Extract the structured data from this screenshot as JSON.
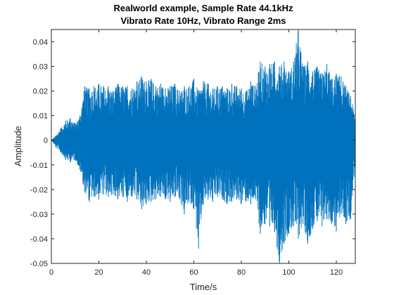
{
  "chart_data": {
    "type": "line",
    "title_line1": "Realworld example, Sample Rate 44.1kHz",
    "title_line2": "Vibrato Rate 10Hz, Vibrato Range 2ms",
    "xlabel": "Time/s",
    "ylabel": "Amplitude",
    "xlim": [
      0,
      128
    ],
    "ylim": [
      -0.05,
      0.045
    ],
    "x_ticks": [
      0,
      20,
      40,
      60,
      80,
      100,
      120
    ],
    "y_ticks": [
      -0.05,
      -0.04,
      -0.03,
      -0.02,
      -0.01,
      0,
      0.01,
      0.02,
      0.03,
      0.04
    ],
    "x_tick_labels": [
      "0",
      "20",
      "40",
      "60",
      "80",
      "100",
      "120"
    ],
    "y_tick_labels": [
      "-0.05",
      "-0.04",
      "-0.03",
      "-0.02",
      "-0.01",
      "0",
      "0.01",
      "0.02",
      "0.03",
      "0.04"
    ],
    "grid": false,
    "line_color": "#0072BD",
    "series": [
      {
        "x": [
          0,
          2,
          4,
          6,
          8,
          10,
          12,
          14,
          16,
          18,
          20,
          22,
          24,
          26,
          28,
          30,
          32,
          34,
          36,
          38,
          40,
          42,
          44,
          46,
          48,
          50,
          52,
          54,
          56,
          58,
          60,
          62,
          64,
          66,
          68,
          70,
          72,
          74,
          76,
          78,
          80,
          82,
          84,
          86,
          88,
          90,
          92,
          94,
          96,
          98,
          100,
          102,
          104,
          106,
          108,
          110,
          112,
          114,
          116,
          118,
          120,
          122,
          124,
          126,
          128
        ],
        "y_upper": [
          0,
          0.002,
          0.005,
          0.008,
          0.009,
          0.007,
          0.01,
          0.022,
          0.021,
          0.022,
          0.023,
          0.022,
          0.022,
          0.02,
          0.023,
          0.022,
          0.022,
          0.021,
          0.024,
          0.026,
          0.024,
          0.025,
          0.022,
          0.023,
          0.021,
          0.022,
          0.023,
          0.02,
          0.022,
          0.022,
          0.025,
          0.02,
          0.024,
          0.023,
          0.021,
          0.022,
          0.022,
          0.021,
          0.023,
          0.022,
          0.021,
          0.02,
          0.024,
          0.022,
          0.032,
          0.03,
          0.031,
          0.032,
          0.03,
          0.032,
          0.028,
          0.032,
          0.046,
          0.03,
          0.032,
          0.028,
          0.03,
          0.027,
          0.031,
          0.025,
          0.027,
          0.026,
          0.022,
          0.018,
          0.01
        ],
        "y_lower": [
          0,
          -0.003,
          -0.005,
          -0.008,
          -0.009,
          -0.008,
          -0.012,
          -0.021,
          -0.025,
          -0.023,
          -0.024,
          -0.022,
          -0.023,
          -0.022,
          -0.024,
          -0.023,
          -0.025,
          -0.023,
          -0.024,
          -0.028,
          -0.026,
          -0.025,
          -0.024,
          -0.023,
          -0.024,
          -0.025,
          -0.023,
          -0.024,
          -0.03,
          -0.025,
          -0.028,
          -0.044,
          -0.026,
          -0.024,
          -0.025,
          -0.023,
          -0.024,
          -0.026,
          -0.025,
          -0.024,
          -0.026,
          -0.025,
          -0.026,
          -0.024,
          -0.038,
          -0.034,
          -0.035,
          -0.037,
          -0.05,
          -0.042,
          -0.038,
          -0.035,
          -0.04,
          -0.034,
          -0.042,
          -0.036,
          -0.033,
          -0.035,
          -0.032,
          -0.034,
          -0.037,
          -0.03,
          -0.034,
          -0.032,
          -0.01
        ]
      }
    ]
  }
}
